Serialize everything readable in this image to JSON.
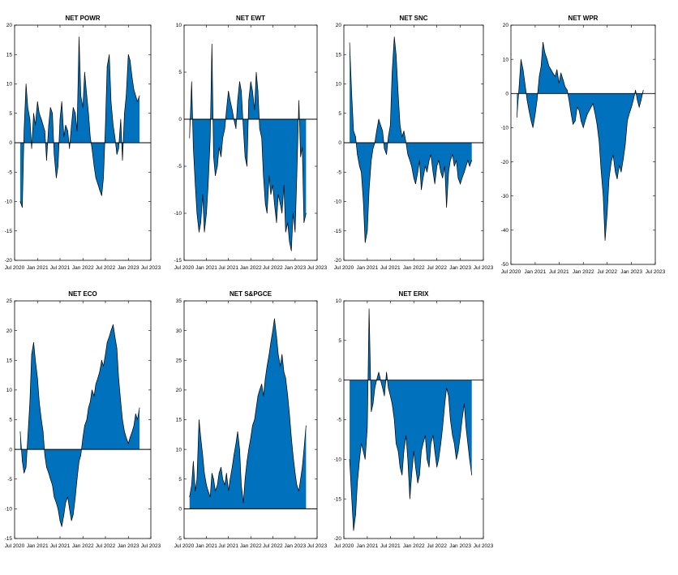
{
  "palette": {
    "fill": "#0072BD",
    "line": "#000000",
    "axes": "#000000"
  },
  "chart_data": [
    {
      "type": "area",
      "title": "NET POWR",
      "ylim": [
        -20,
        20
      ],
      "yticks": [
        -20,
        -15,
        -10,
        -5,
        0,
        5,
        10,
        15,
        20
      ],
      "xticks": [
        "Jul 2020",
        "Jan 2021",
        "Jul 2021",
        "Jan 2022",
        "Jul 2022",
        "Jan 2023",
        "Jul 2023"
      ],
      "x": [
        "2020-08-15",
        "2020-09-01",
        "2020-09-15",
        "2020-10-01",
        "2020-10-15",
        "2020-11-01",
        "2020-11-15",
        "2020-12-01",
        "2020-12-15",
        "2021-01-01",
        "2021-01-15",
        "2021-02-01",
        "2021-02-15",
        "2021-03-01",
        "2021-03-15",
        "2021-04-01",
        "2021-04-15",
        "2021-05-01",
        "2021-05-15",
        "2021-06-01",
        "2021-06-15",
        "2021-07-01",
        "2021-07-15",
        "2021-08-01",
        "2021-08-15",
        "2021-09-01",
        "2021-09-15",
        "2021-10-01",
        "2021-10-15",
        "2021-11-01",
        "2021-11-15",
        "2021-12-01",
        "2021-12-15",
        "2022-01-01",
        "2022-01-15",
        "2022-02-01",
        "2022-02-15",
        "2022-03-01",
        "2022-03-15",
        "2022-04-01",
        "2022-04-15",
        "2022-05-01",
        "2022-05-15",
        "2022-06-01",
        "2022-06-15",
        "2022-07-01",
        "2022-07-15",
        "2022-08-01",
        "2022-08-15",
        "2022-09-01",
        "2022-09-15",
        "2022-10-01",
        "2022-10-15",
        "2022-11-01",
        "2022-11-15",
        "2022-12-01",
        "2022-12-15",
        "2023-01-01",
        "2023-01-15",
        "2023-02-01",
        "2023-02-15",
        "2023-03-01",
        "2023-03-15",
        "2023-04-01"
      ],
      "y": [
        -10,
        -11,
        2,
        10,
        6,
        4,
        -1,
        5,
        3,
        7,
        5,
        4,
        3,
        2,
        -3,
        3,
        6,
        5,
        -2,
        -6,
        -4,
        4,
        7,
        1,
        3,
        2,
        -1,
        3,
        6,
        5,
        2,
        18,
        8,
        6,
        12,
        8,
        5,
        1,
        -1,
        -4,
        -6,
        -7,
        -8,
        -9,
        -6,
        3,
        13,
        15,
        7,
        3,
        1,
        -2,
        -1,
        4,
        -3,
        5,
        8,
        15,
        14,
        11,
        9,
        8,
        7,
        8
      ]
    },
    {
      "type": "area",
      "title": "NET EWT",
      "ylim": [
        -15,
        10
      ],
      "yticks": [
        -15,
        -10,
        -5,
        0,
        5,
        10
      ],
      "xticks": [
        "Jul 2020",
        "Jan 2021",
        "Jul 2021",
        "Jan 2022",
        "Jul 2022",
        "Jan 2023",
        "Jul 2023"
      ],
      "x": [
        "2020-08-15",
        "2020-09-01",
        "2020-09-15",
        "2020-10-01",
        "2020-10-15",
        "2020-11-01",
        "2020-11-15",
        "2020-12-01",
        "2020-12-15",
        "2021-01-01",
        "2021-01-15",
        "2021-02-01",
        "2021-02-15",
        "2021-03-01",
        "2021-03-15",
        "2021-04-01",
        "2021-04-15",
        "2021-05-01",
        "2021-05-15",
        "2021-06-01",
        "2021-06-15",
        "2021-07-01",
        "2021-07-15",
        "2021-08-01",
        "2021-08-15",
        "2021-09-01",
        "2021-09-15",
        "2021-10-01",
        "2021-10-15",
        "2021-11-01",
        "2021-11-15",
        "2021-12-01",
        "2021-12-15",
        "2022-01-01",
        "2022-01-15",
        "2022-02-01",
        "2022-02-15",
        "2022-03-01",
        "2022-03-15",
        "2022-04-01",
        "2022-04-15",
        "2022-05-01",
        "2022-05-15",
        "2022-06-01",
        "2022-06-15",
        "2022-07-01",
        "2022-07-15",
        "2022-08-01",
        "2022-08-15",
        "2022-09-01",
        "2022-09-15",
        "2022-10-01",
        "2022-10-15",
        "2022-11-01",
        "2022-11-15",
        "2022-12-01",
        "2022-12-15",
        "2023-01-01",
        "2023-01-15",
        "2023-02-01",
        "2023-02-15",
        "2023-03-01",
        "2023-03-15",
        "2023-04-01"
      ],
      "y": [
        -2,
        4,
        -3,
        -7,
        -10,
        -12,
        -11,
        -8,
        -12,
        -10,
        -7,
        -2,
        8,
        -4,
        -6,
        -5,
        -3,
        -4,
        -2,
        -1,
        1,
        3,
        2,
        1,
        0,
        -1,
        2,
        4,
        3,
        -1,
        -4,
        -5,
        2,
        4,
        3,
        1,
        5,
        3,
        -1,
        -2,
        -6,
        -9,
        -10,
        -6,
        -8,
        -7,
        -9,
        -11,
        -8,
        -9,
        -10,
        -7,
        -12,
        -11,
        -13,
        -14,
        -10,
        -12,
        -6,
        2,
        -4,
        -3,
        -11,
        -10
      ]
    },
    {
      "type": "area",
      "title": "NET SNC",
      "ylim": [
        -20,
        20
      ],
      "yticks": [
        -20,
        -15,
        -10,
        -5,
        0,
        5,
        10,
        15,
        20
      ],
      "xticks": [
        "Jul 2020",
        "Jan 2021",
        "Jul 2021",
        "Jan 2022",
        "Jul 2022",
        "Jan 2023",
        "Jul 2023"
      ],
      "x": [
        "2020-08-15",
        "2020-09-01",
        "2020-09-15",
        "2020-10-01",
        "2020-10-15",
        "2020-11-01",
        "2020-11-15",
        "2020-12-01",
        "2020-12-15",
        "2021-01-01",
        "2021-01-15",
        "2021-02-01",
        "2021-02-15",
        "2021-03-01",
        "2021-03-15",
        "2021-04-01",
        "2021-04-15",
        "2021-05-01",
        "2021-05-15",
        "2021-06-01",
        "2021-06-15",
        "2021-07-01",
        "2021-07-15",
        "2021-08-01",
        "2021-08-15",
        "2021-09-01",
        "2021-09-15",
        "2021-10-01",
        "2021-10-15",
        "2021-11-01",
        "2021-11-15",
        "2021-12-01",
        "2021-12-15",
        "2022-01-01",
        "2022-01-15",
        "2022-02-01",
        "2022-02-15",
        "2022-03-01",
        "2022-03-15",
        "2022-04-01",
        "2022-04-15",
        "2022-05-01",
        "2022-05-15",
        "2022-06-01",
        "2022-06-15",
        "2022-07-01",
        "2022-07-15",
        "2022-08-01",
        "2022-08-15",
        "2022-09-01",
        "2022-09-15",
        "2022-10-01",
        "2022-10-15",
        "2022-11-01",
        "2022-11-15",
        "2022-12-01",
        "2022-12-15",
        "2023-01-01",
        "2023-01-15",
        "2023-02-01",
        "2023-02-15",
        "2023-03-01",
        "2023-03-15",
        "2023-04-01"
      ],
      "y": [
        17,
        8,
        2,
        1,
        -2,
        -4,
        -5,
        -10,
        -17,
        -15,
        -8,
        -3,
        -1,
        0,
        2,
        4,
        3,
        2,
        -1,
        -2,
        1,
        3,
        12,
        18,
        15,
        8,
        3,
        1,
        2,
        0,
        -2,
        -3,
        -4,
        -6,
        -7,
        -5,
        -3,
        -8,
        -6,
        -4,
        -5,
        -3,
        -2,
        -5,
        -7,
        -4,
        -3,
        -5,
        -6,
        -4,
        -11,
        -5,
        -3,
        -2,
        -4,
        -3,
        -6,
        -7,
        -6,
        -5,
        -4,
        -3,
        -4,
        -3
      ]
    },
    {
      "type": "area",
      "title": "NET WPR",
      "ylim": [
        -50,
        20
      ],
      "yticks": [
        -50,
        -40,
        -30,
        -20,
        -10,
        0,
        10,
        20
      ],
      "xticks": [
        "Jul 2020",
        "Jan 2021",
        "Jul 2021",
        "Jan 2022",
        "Jul 2022",
        "Jan 2023",
        "Jul 2023"
      ],
      "x": [
        "2020-08-15",
        "2020-09-01",
        "2020-09-15",
        "2020-10-01",
        "2020-10-15",
        "2020-11-01",
        "2020-11-15",
        "2020-12-01",
        "2020-12-15",
        "2021-01-01",
        "2021-01-15",
        "2021-02-01",
        "2021-02-15",
        "2021-03-01",
        "2021-03-15",
        "2021-04-01",
        "2021-04-15",
        "2021-05-01",
        "2021-05-15",
        "2021-06-01",
        "2021-06-15",
        "2021-07-01",
        "2021-07-15",
        "2021-08-01",
        "2021-08-15",
        "2021-09-01",
        "2021-09-15",
        "2021-10-01",
        "2021-10-15",
        "2021-11-01",
        "2021-11-15",
        "2021-12-01",
        "2021-12-15",
        "2022-01-01",
        "2022-01-15",
        "2022-02-01",
        "2022-02-15",
        "2022-03-01",
        "2022-03-15",
        "2022-04-01",
        "2022-04-15",
        "2022-05-01",
        "2022-05-15",
        "2022-06-01",
        "2022-06-15",
        "2022-07-01",
        "2022-07-15",
        "2022-08-01",
        "2022-08-15",
        "2022-09-01",
        "2022-09-15",
        "2022-10-01",
        "2022-10-15",
        "2022-11-01",
        "2022-11-15",
        "2022-12-01",
        "2022-12-15",
        "2023-01-01",
        "2023-01-15",
        "2023-02-01",
        "2023-02-15",
        "2023-03-01",
        "2023-03-15",
        "2023-04-01"
      ],
      "y": [
        -7,
        2,
        10,
        7,
        3,
        -2,
        -5,
        -8,
        -10,
        -6,
        -2,
        5,
        8,
        15,
        12,
        10,
        8,
        7,
        6,
        5,
        7,
        3,
        6,
        4,
        2,
        1,
        -2,
        -6,
        -9,
        -8,
        -4,
        -5,
        -8,
        -10,
        -8,
        -6,
        -5,
        -4,
        -3,
        -6,
        -9,
        -14,
        -22,
        -30,
        -43,
        -35,
        -25,
        -20,
        -18,
        -23,
        -25,
        -21,
        -23,
        -19,
        -15,
        -8,
        -6,
        -4,
        -2,
        1,
        -2,
        -4,
        -2,
        1
      ]
    },
    {
      "type": "area",
      "title": "NET ECO",
      "ylim": [
        -15,
        25
      ],
      "yticks": [
        -15,
        -10,
        -5,
        0,
        5,
        10,
        15,
        20,
        25
      ],
      "xticks": [
        "Jul 2020",
        "Jan 2021",
        "Jul 2021",
        "Jan 2022",
        "Jul 2022",
        "Jan 2023",
        "Jul 2023"
      ],
      "x": [
        "2020-08-15",
        "2020-09-01",
        "2020-09-15",
        "2020-10-01",
        "2020-10-15",
        "2020-11-01",
        "2020-11-15",
        "2020-12-01",
        "2020-12-15",
        "2021-01-01",
        "2021-01-15",
        "2021-02-01",
        "2021-02-15",
        "2021-03-01",
        "2021-03-15",
        "2021-04-01",
        "2021-04-15",
        "2021-05-01",
        "2021-05-15",
        "2021-06-01",
        "2021-06-15",
        "2021-07-01",
        "2021-07-15",
        "2021-08-01",
        "2021-08-15",
        "2021-09-01",
        "2021-09-15",
        "2021-10-01",
        "2021-10-15",
        "2021-11-01",
        "2021-11-15",
        "2021-12-01",
        "2021-12-15",
        "2022-01-01",
        "2022-01-15",
        "2022-02-01",
        "2022-02-15",
        "2022-03-01",
        "2022-03-15",
        "2022-04-01",
        "2022-04-15",
        "2022-05-01",
        "2022-05-15",
        "2022-06-01",
        "2022-06-15",
        "2022-07-01",
        "2022-07-15",
        "2022-08-01",
        "2022-08-15",
        "2022-09-01",
        "2022-09-15",
        "2022-10-01",
        "2022-10-15",
        "2022-11-01",
        "2022-11-15",
        "2022-12-01",
        "2022-12-15",
        "2023-01-01",
        "2023-01-15",
        "2023-02-01",
        "2023-02-15",
        "2023-03-01",
        "2023-03-15",
        "2023-04-01"
      ],
      "y": [
        3,
        -2,
        -4,
        -3,
        2,
        8,
        16,
        18,
        15,
        12,
        8,
        5,
        3,
        -1,
        -3,
        -4,
        -5,
        -6,
        -8,
        -9,
        -10,
        -12,
        -13,
        -11,
        -9,
        -8,
        -10,
        -12,
        -11,
        -8,
        -5,
        -2,
        -1,
        2,
        4,
        5,
        7,
        8,
        10,
        9,
        11,
        12,
        13,
        15,
        14,
        16,
        18,
        19,
        20,
        21,
        19,
        17,
        12,
        8,
        5,
        3,
        2,
        1,
        2,
        3,
        4,
        6,
        5,
        7
      ]
    },
    {
      "type": "area",
      "title": "NET S&PGCE",
      "ylim": [
        -5,
        35
      ],
      "yticks": [
        -5,
        0,
        5,
        10,
        15,
        20,
        25,
        30,
        35
      ],
      "xticks": [
        "Jul 2020",
        "Jan 2021",
        "Jul 2021",
        "Jan 2022",
        "Jul 2022",
        "Jan 2023",
        "Jul 2023"
      ],
      "x": [
        "2020-08-15",
        "2020-09-01",
        "2020-09-15",
        "2020-10-01",
        "2020-10-15",
        "2020-11-01",
        "2020-11-15",
        "2020-12-01",
        "2020-12-15",
        "2021-01-01",
        "2021-01-15",
        "2021-02-01",
        "2021-02-15",
        "2021-03-01",
        "2021-03-15",
        "2021-04-01",
        "2021-04-15",
        "2021-05-01",
        "2021-05-15",
        "2021-06-01",
        "2021-06-15",
        "2021-07-01",
        "2021-07-15",
        "2021-08-01",
        "2021-08-15",
        "2021-09-01",
        "2021-09-15",
        "2021-10-01",
        "2021-10-15",
        "2021-11-01",
        "2021-11-15",
        "2021-12-01",
        "2021-12-15",
        "2022-01-01",
        "2022-01-15",
        "2022-02-01",
        "2022-02-15",
        "2022-03-01",
        "2022-03-15",
        "2022-04-01",
        "2022-04-15",
        "2022-05-01",
        "2022-05-15",
        "2022-06-01",
        "2022-06-15",
        "2022-07-01",
        "2022-07-15",
        "2022-08-01",
        "2022-08-15",
        "2022-09-01",
        "2022-09-15",
        "2022-10-01",
        "2022-10-15",
        "2022-11-01",
        "2022-11-15",
        "2022-12-01",
        "2022-12-15",
        "2023-01-01",
        "2023-01-15",
        "2023-02-01",
        "2023-02-15",
        "2023-03-01",
        "2023-03-15",
        "2023-04-01"
      ],
      "y": [
        2,
        4,
        8,
        3,
        5,
        15,
        12,
        9,
        6,
        4,
        3,
        2,
        6,
        5,
        3,
        4,
        6,
        7,
        5,
        4,
        6,
        3,
        5,
        7,
        9,
        11,
        13,
        10,
        4,
        1,
        5,
        8,
        10,
        12,
        14,
        15,
        17,
        19,
        20,
        21,
        19,
        22,
        24,
        26,
        28,
        30,
        32,
        29,
        26,
        24,
        26,
        23,
        22,
        19,
        16,
        12,
        9,
        6,
        4,
        3,
        5,
        7,
        10,
        14
      ]
    },
    {
      "type": "area",
      "title": "NET ERIX",
      "ylim": [
        -20,
        10
      ],
      "yticks": [
        -20,
        -15,
        -10,
        -5,
        0,
        5,
        10
      ],
      "xticks": [
        "Jul 2020",
        "Jan 2021",
        "Jul 2021",
        "Jan 2022",
        "Jul 2022",
        "Jan 2023",
        "Jul 2023"
      ],
      "x": [
        "2020-08-15",
        "2020-09-01",
        "2020-09-15",
        "2020-10-01",
        "2020-10-15",
        "2020-11-01",
        "2020-11-15",
        "2020-12-01",
        "2020-12-15",
        "2021-01-01",
        "2021-01-15",
        "2021-02-01",
        "2021-02-15",
        "2021-03-01",
        "2021-03-15",
        "2021-04-01",
        "2021-04-15",
        "2021-05-01",
        "2021-05-15",
        "2021-06-01",
        "2021-06-15",
        "2021-07-01",
        "2021-07-15",
        "2021-08-01",
        "2021-08-15",
        "2021-09-01",
        "2021-09-15",
        "2021-10-01",
        "2021-10-15",
        "2021-11-01",
        "2021-11-15",
        "2021-12-01",
        "2021-12-15",
        "2022-01-01",
        "2022-01-15",
        "2022-02-01",
        "2022-02-15",
        "2022-03-01",
        "2022-03-15",
        "2022-04-01",
        "2022-04-15",
        "2022-05-01",
        "2022-05-15",
        "2022-06-01",
        "2022-06-15",
        "2022-07-01",
        "2022-07-15",
        "2022-08-01",
        "2022-08-15",
        "2022-09-01",
        "2022-09-15",
        "2022-10-01",
        "2022-10-15",
        "2022-11-01",
        "2022-11-15",
        "2022-12-01",
        "2022-12-15",
        "2023-01-01",
        "2023-01-15",
        "2023-02-01",
        "2023-02-15",
        "2023-03-01",
        "2023-03-15",
        "2023-04-01"
      ],
      "y": [
        -10,
        -15,
        -19,
        -17,
        -13,
        -10,
        -8,
        -9,
        -10,
        -6,
        9,
        -4,
        -3,
        -1,
        0,
        1,
        0,
        -1,
        -2,
        1,
        -1,
        -2,
        -3,
        -5,
        -8,
        -9,
        -11,
        -12,
        -9,
        -7,
        -10,
        -15,
        -12,
        -9,
        -11,
        -13,
        -12,
        -9,
        -8,
        -7,
        -10,
        -11,
        -8,
        -7,
        -9,
        -11,
        -10,
        -8,
        -6,
        -3,
        -1,
        -2,
        -5,
        -7,
        -8,
        -10,
        -9,
        -7,
        -5,
        -3,
        -6,
        -8,
        -10,
        -12
      ]
    }
  ]
}
